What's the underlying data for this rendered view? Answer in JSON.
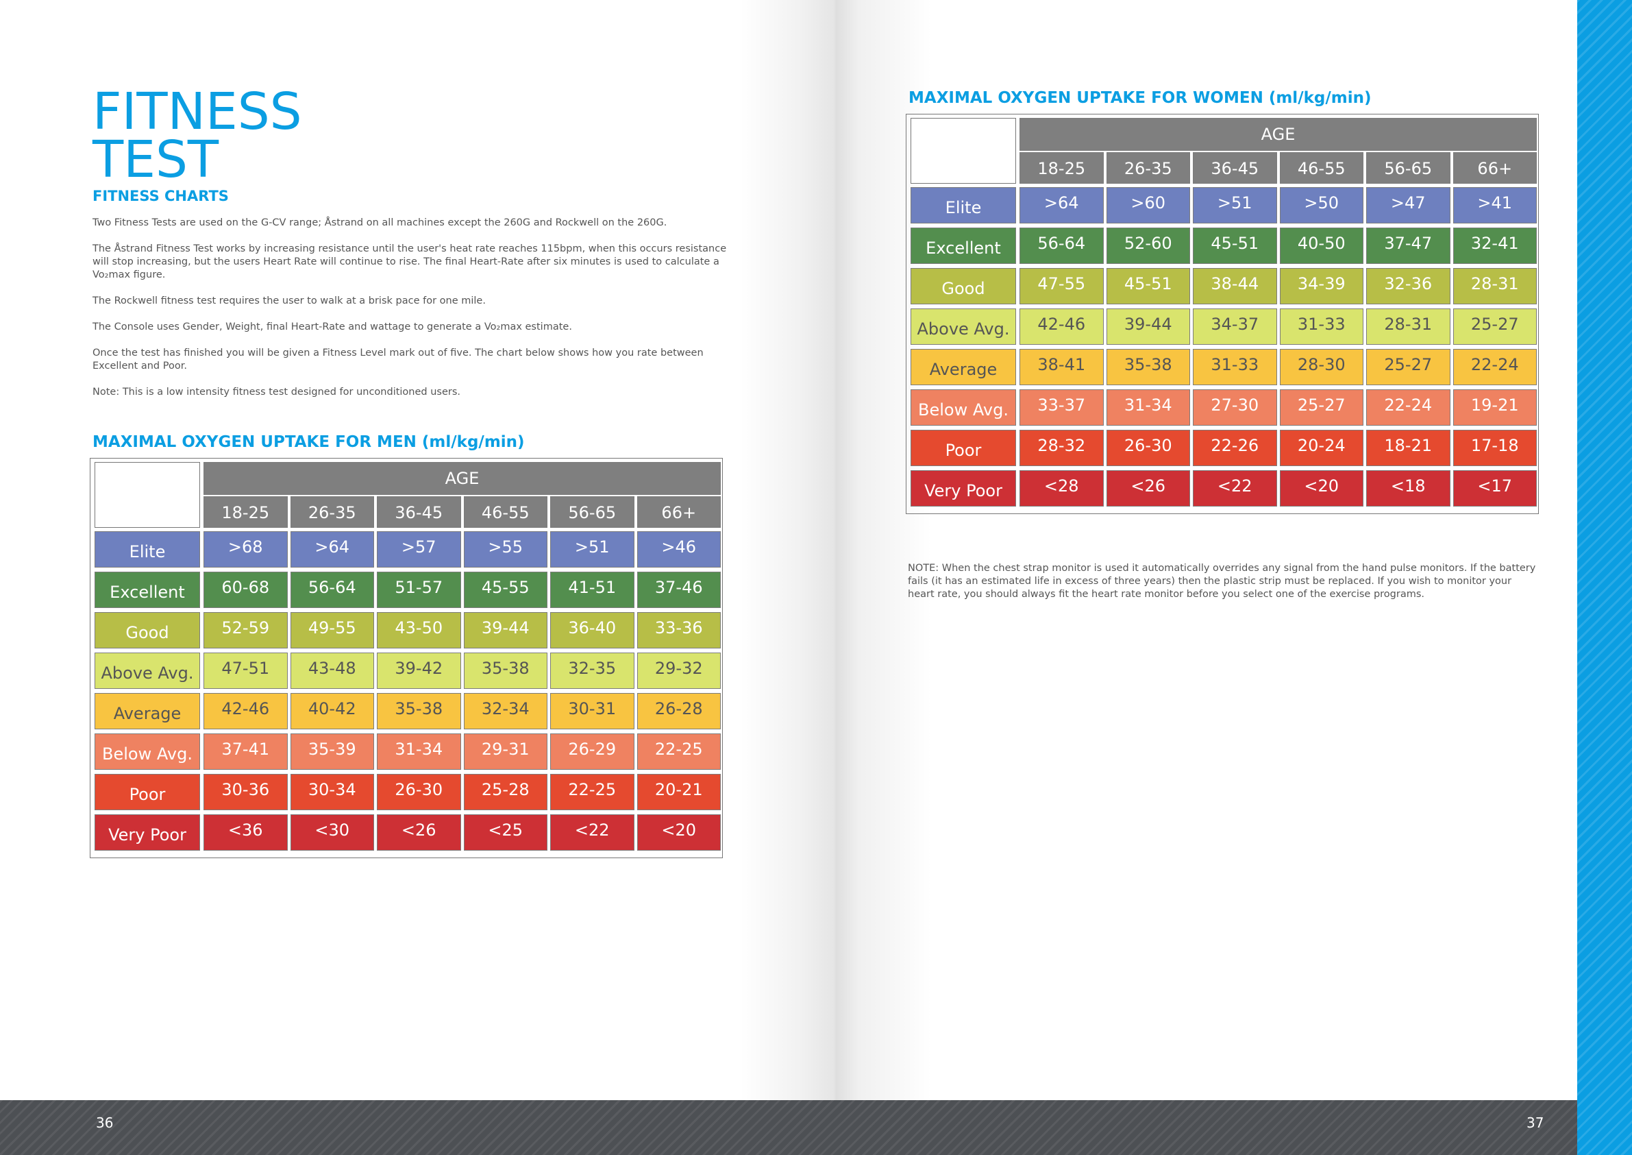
{
  "page_left": {
    "title_lines": [
      "FITNESS",
      "TEST"
    ],
    "subtitle": "FITNESS CHARTS",
    "paragraphs": [
      "Two Fitness Tests are used on the G-CV range; Åstrand on all machines except the 260G and Rockwell on the 260G.",
      "The Åstrand Fitness Test works by increasing resistance until the user's heat rate reaches 115bpm, when this occurs resistance will stop increasing, but the users Heart Rate will continue to rise. The final Heart-Rate after six minutes is used to calculate a Vo₂max figure.",
      "The Rockwell fitness test requires the user to walk at a brisk pace for one mile.",
      "The Console uses Gender, Weight, final Heart-Rate and wattage to generate a Vo₂max estimate.",
      "Once the test has finished you will be given a Fitness Level mark out of five. The chart below shows how you rate between Excellent and Poor.",
      "Note: This is a low intensity fitness test designed for unconditioned users."
    ],
    "page_number": "36"
  },
  "page_right": {
    "note": "NOTE: When the chest strap monitor is used it automatically overrides any signal from the hand pulse monitors. If the battery fails (it has an estimated life in excess of three years) then the plastic strip must be replaced. If you wish to monitor your heart rate, you should always fit the heart rate monitor before you select one of the exercise programs.",
    "page_number": "37"
  },
  "colors": {
    "accent_blue": "#0b9ee2",
    "header_grey": "#7f7f7f",
    "footer_grey": "#4d5054",
    "elite": "#6e80bf",
    "excellent": "#538e4e",
    "good": "#b7be47",
    "above_avg": "#d9e46d",
    "average": "#f8c441",
    "below_avg": "#ef8261",
    "poor": "#e54a2f",
    "very_poor": "#cd3035"
  },
  "tables": {
    "men": {
      "heading": "MAXIMAL OXYGEN UPTAKE FOR MEN (ml/kg/min)",
      "age_label": "AGE",
      "ages": [
        "18-25",
        "26-35",
        "36-45",
        "46-55",
        "56-65",
        "66+"
      ],
      "rows": [
        {
          "label": "Elite",
          "values": [
            ">68",
            ">64",
            ">57",
            ">55",
            ">51",
            ">46"
          ]
        },
        {
          "label": "Excellent",
          "values": [
            "60-68",
            "56-64",
            "51-57",
            "45-55",
            "41-51",
            "37-46"
          ]
        },
        {
          "label": "Good",
          "values": [
            "52-59",
            "49-55",
            "43-50",
            "39-44",
            "36-40",
            "33-36"
          ]
        },
        {
          "label": "Above Avg.",
          "values": [
            "47-51",
            "43-48",
            "39-42",
            "35-38",
            "32-35",
            "29-32"
          ]
        },
        {
          "label": "Average",
          "values": [
            "42-46",
            "40-42",
            "35-38",
            "32-34",
            "30-31",
            "26-28"
          ]
        },
        {
          "label": "Below Avg.",
          "values": [
            "37-41",
            "35-39",
            "31-34",
            "29-31",
            "26-29",
            "22-25"
          ]
        },
        {
          "label": "Poor",
          "values": [
            "30-36",
            "30-34",
            "26-30",
            "25-28",
            "22-25",
            "20-21"
          ]
        },
        {
          "label": "Very Poor",
          "values": [
            "<36",
            "<30",
            "<26",
            "<25",
            "<22",
            "<20"
          ]
        }
      ]
    },
    "women": {
      "heading": "MAXIMAL OXYGEN UPTAKE FOR WOMEN (ml/kg/min)",
      "age_label": "AGE",
      "ages": [
        "18-25",
        "26-35",
        "36-45",
        "46-55",
        "56-65",
        "66+"
      ],
      "rows": [
        {
          "label": "Elite",
          "values": [
            ">64",
            ">60",
            ">51",
            ">50",
            ">47",
            ">41"
          ]
        },
        {
          "label": "Excellent",
          "values": [
            "56-64",
            "52-60",
            "45-51",
            "40-50",
            "37-47",
            "32-41"
          ]
        },
        {
          "label": "Good",
          "values": [
            "47-55",
            "45-51",
            "38-44",
            "34-39",
            "32-36",
            "28-31"
          ]
        },
        {
          "label": "Above Avg.",
          "values": [
            "42-46",
            "39-44",
            "34-37",
            "31-33",
            "28-31",
            "25-27"
          ]
        },
        {
          "label": "Average",
          "values": [
            "38-41",
            "35-38",
            "31-33",
            "28-30",
            "25-27",
            "22-24"
          ]
        },
        {
          "label": "Below Avg.",
          "values": [
            "33-37",
            "31-34",
            "27-30",
            "25-27",
            "22-24",
            "19-21"
          ]
        },
        {
          "label": "Poor",
          "values": [
            "28-32",
            "26-30",
            "22-26",
            "20-24",
            "18-21",
            "17-18"
          ]
        },
        {
          "label": "Very Poor",
          "values": [
            "<28",
            "<26",
            "<22",
            "<20",
            "<18",
            "<17"
          ]
        }
      ]
    }
  }
}
